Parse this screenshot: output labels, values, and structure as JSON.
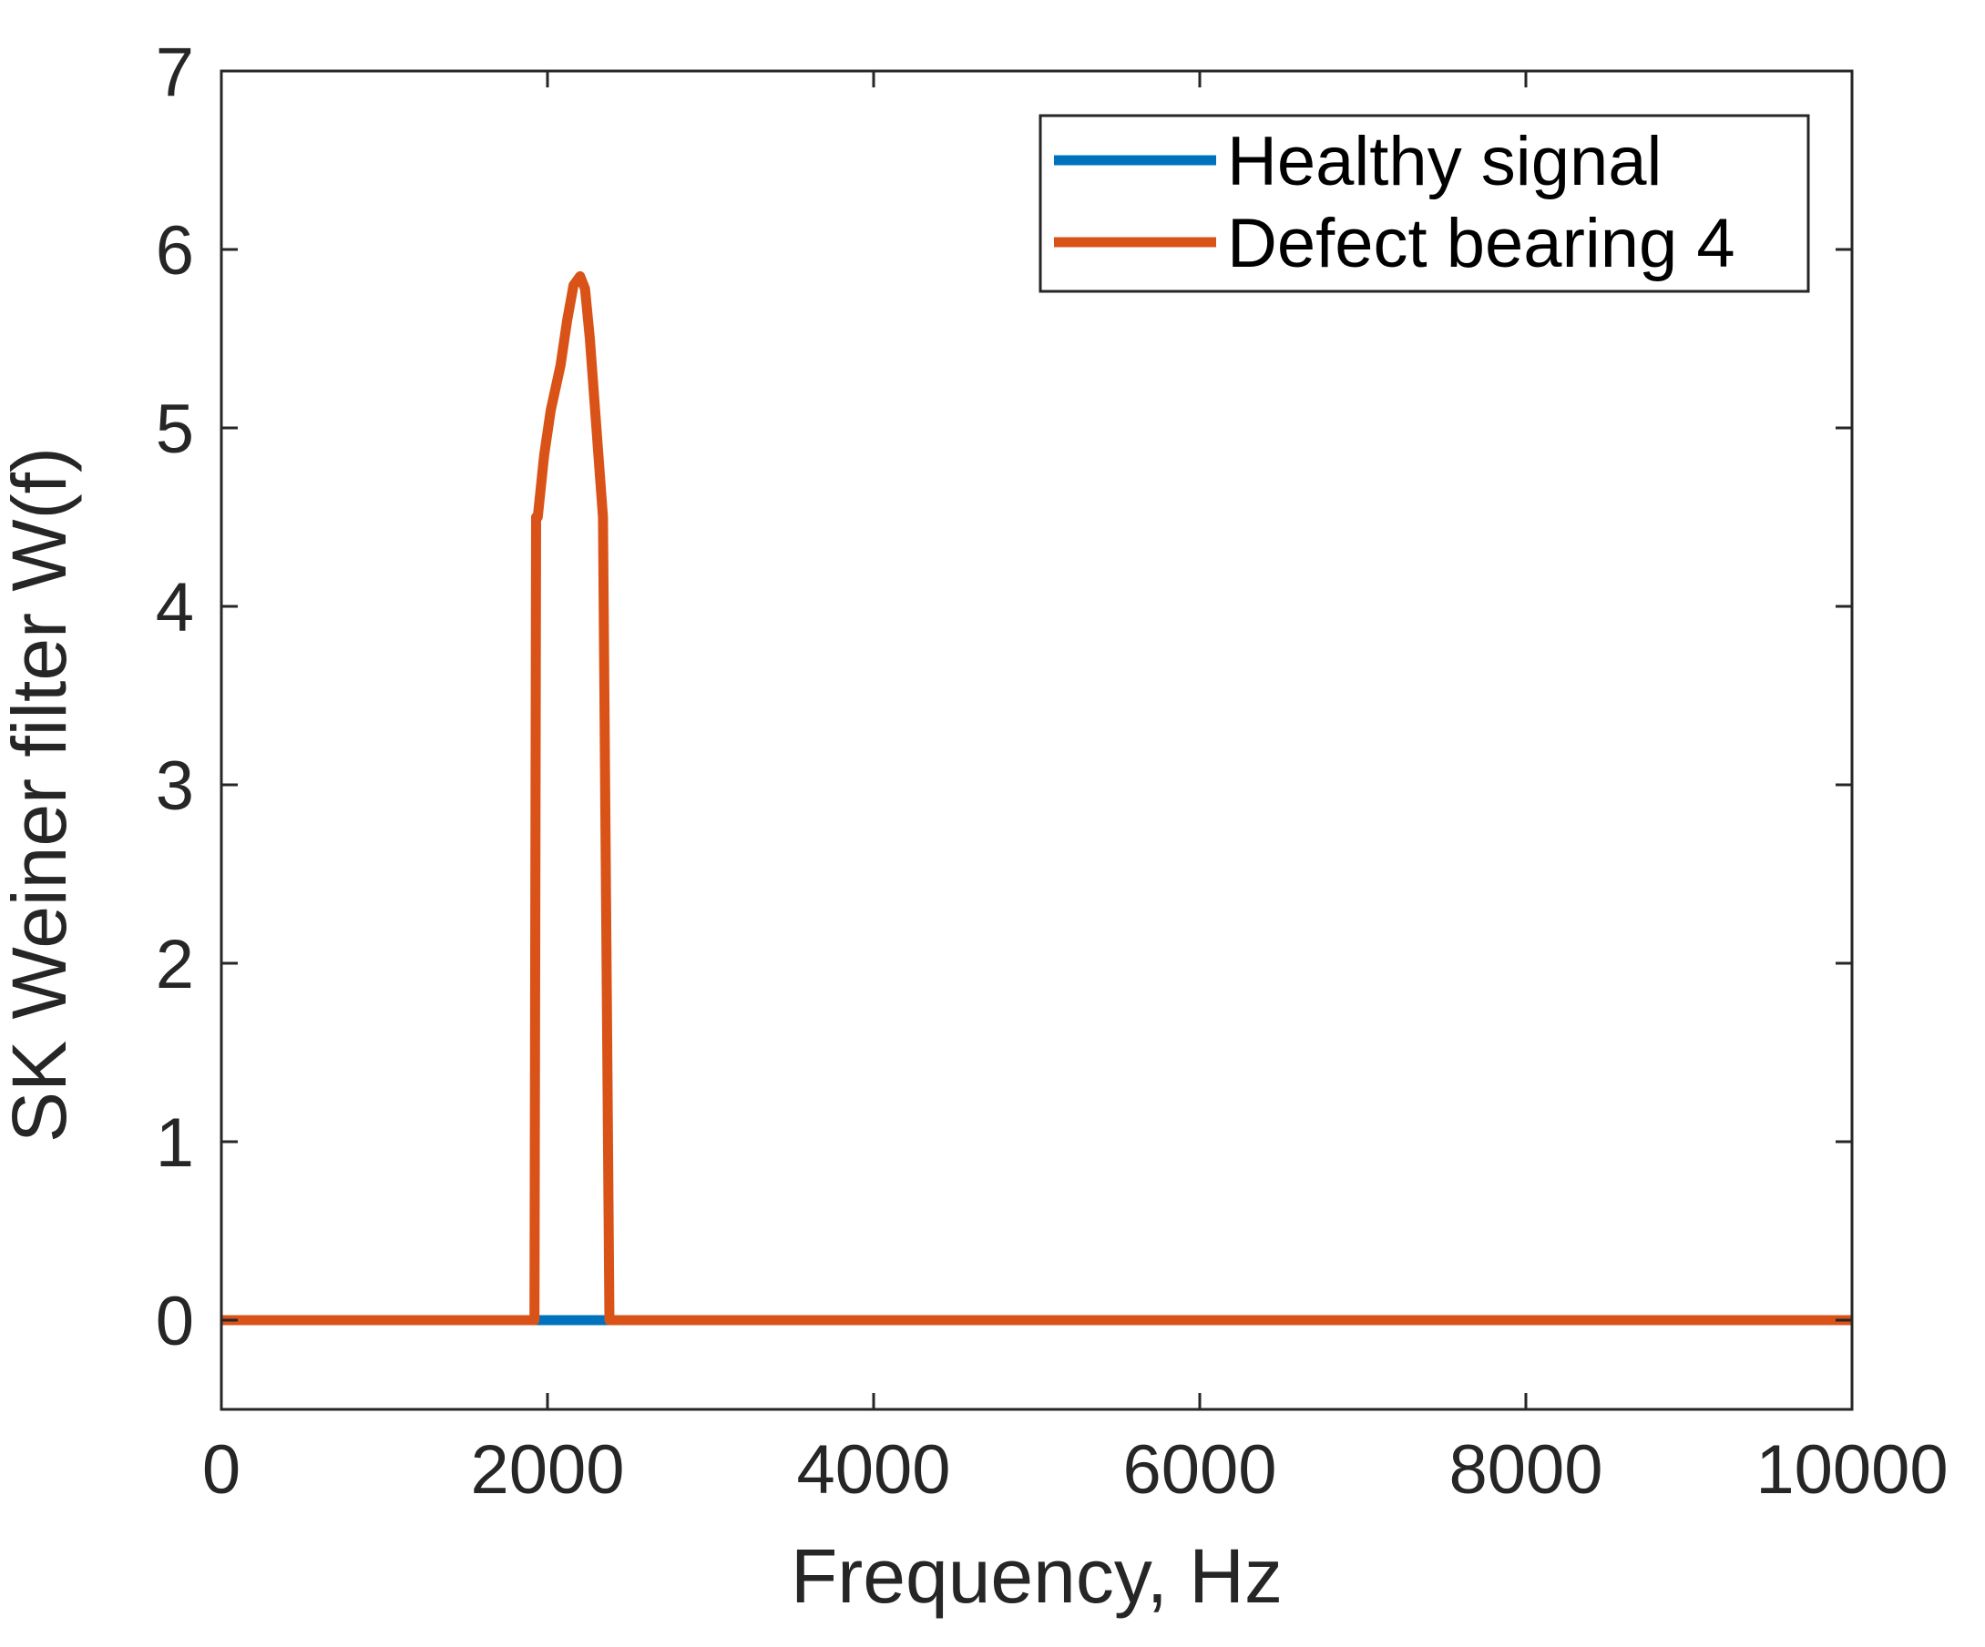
{
  "chart_data": {
    "type": "line",
    "title": "",
    "xlabel": "Frequency, Hz",
    "ylabel": "SK Weiner filter W(f)",
    "xlim": [
      0,
      10000
    ],
    "ylim": [
      -0.5,
      7
    ],
    "xticks": [
      0,
      2000,
      4000,
      6000,
      8000,
      10000
    ],
    "xtick_labels": [
      "0",
      "2000",
      "4000",
      "6000",
      "8000",
      "10000"
    ],
    "yticks": [
      0,
      1,
      2,
      3,
      4,
      5,
      6,
      7
    ],
    "ytick_labels": [
      "0",
      "1",
      "2",
      "3",
      "4",
      "5",
      "6",
      "7"
    ],
    "grid": false,
    "legend_position": "top-right",
    "series": [
      {
        "name": "Healthy signal",
        "color": "#0072BD",
        "x": [
          0,
          10000
        ],
        "y": [
          0,
          0
        ]
      },
      {
        "name": "Defect bearing 4",
        "color": "#D95319",
        "x": [
          0,
          1920,
          1930,
          1940,
          1980,
          2020,
          2080,
          2120,
          2160,
          2200,
          2230,
          2260,
          2300,
          2340,
          2380,
          2400,
          2410,
          10000
        ],
        "y": [
          0,
          0,
          4.5,
          4.5,
          4.85,
          5.1,
          5.35,
          5.6,
          5.8,
          5.85,
          5.78,
          5.5,
          5.0,
          4.5,
          0,
          0,
          0,
          0
        ]
      }
    ]
  }
}
